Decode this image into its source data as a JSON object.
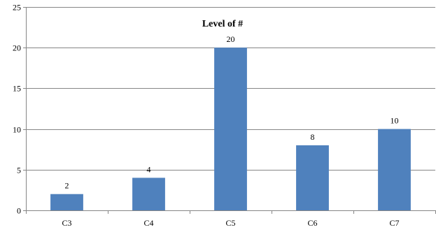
{
  "chart_data": {
    "type": "bar",
    "title": "Level of #",
    "categories": [
      "C3",
      "C4",
      "C5",
      "C6",
      "C7"
    ],
    "values": [
      2,
      4,
      20,
      8,
      10
    ],
    "data_labels": [
      "2",
      "4",
      "20",
      "8",
      "10"
    ],
    "xlabel": "",
    "ylabel": "",
    "ylim": [
      0,
      25
    ],
    "yticks": [
      0,
      5,
      10,
      15,
      20,
      25
    ],
    "ytick_labels": [
      "0",
      "5",
      "10",
      "15",
      "20",
      "25"
    ],
    "grid": true,
    "legend": false,
    "colors": {
      "bar": "#4F81BD",
      "grid": "#868686",
      "axis": "#868686"
    }
  }
}
